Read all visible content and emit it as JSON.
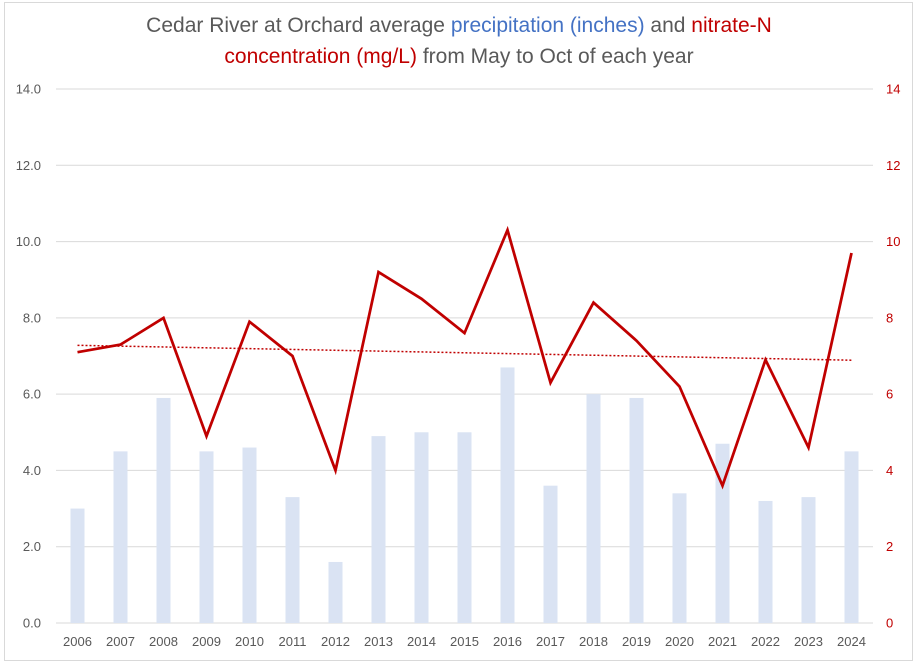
{
  "chart_data": {
    "type": "bar+line",
    "title": {
      "segments": [
        {
          "text": "Cedar River at Orchard average ",
          "color": "#595959"
        },
        {
          "text": "precipitation (inches)",
          "color": "#4472c4"
        },
        {
          "text": " and ",
          "color": "#595959"
        },
        {
          "text": "nitrate-N",
          "color": "#c00000"
        }
      ],
      "segments_line2": [
        {
          "text": "concentration (mg/L)",
          "color": "#c00000"
        },
        {
          "text": " from May to Oct of each year",
          "color": "#595959"
        }
      ]
    },
    "categories": [
      "2006",
      "2007",
      "2008",
      "2009",
      "2010",
      "2011",
      "2012",
      "2013",
      "2014",
      "2015",
      "2016",
      "2017",
      "2018",
      "2019",
      "2020",
      "2021",
      "2022",
      "2023",
      "2024"
    ],
    "series": [
      {
        "name": "Precipitation (inches)",
        "type": "bar",
        "axis": "left",
        "color": "#dae3f3",
        "values": [
          3.0,
          4.5,
          5.9,
          4.5,
          4.6,
          3.3,
          1.6,
          4.9,
          5.0,
          5.0,
          6.7,
          3.6,
          6.0,
          5.9,
          3.4,
          4.7,
          3.2,
          3.3,
          4.5
        ]
      },
      {
        "name": "Nitrate-N concentration (mg/L)",
        "type": "line",
        "axis": "right",
        "color": "#c00000",
        "values": [
          7.1,
          7.3,
          8.0,
          4.9,
          7.9,
          7.0,
          4.0,
          9.2,
          8.5,
          7.6,
          10.3,
          6.3,
          8.4,
          7.4,
          6.2,
          3.6,
          6.9,
          4.6,
          9.7
        ]
      },
      {
        "name": "Linear trend (nitrate-N)",
        "type": "trendline",
        "axis": "right",
        "color": "#c00000",
        "style": "dotted",
        "start": 7.28,
        "end": 6.89
      }
    ],
    "y_left": {
      "min": 0,
      "max": 14,
      "step": 2,
      "tick_labels": [
        "0.0",
        "2.0",
        "4.0",
        "6.0",
        "8.0",
        "10.0",
        "12.0",
        "14.0"
      ],
      "color": "#595959"
    },
    "y_right": {
      "min": 0,
      "max": 14,
      "step": 2,
      "tick_labels": [
        "0",
        "2",
        "4",
        "6",
        "8",
        "10",
        "12",
        "14"
      ],
      "color": "#c00000"
    },
    "xlabel": "",
    "ylabel": "",
    "grid": true,
    "legend": "none"
  }
}
